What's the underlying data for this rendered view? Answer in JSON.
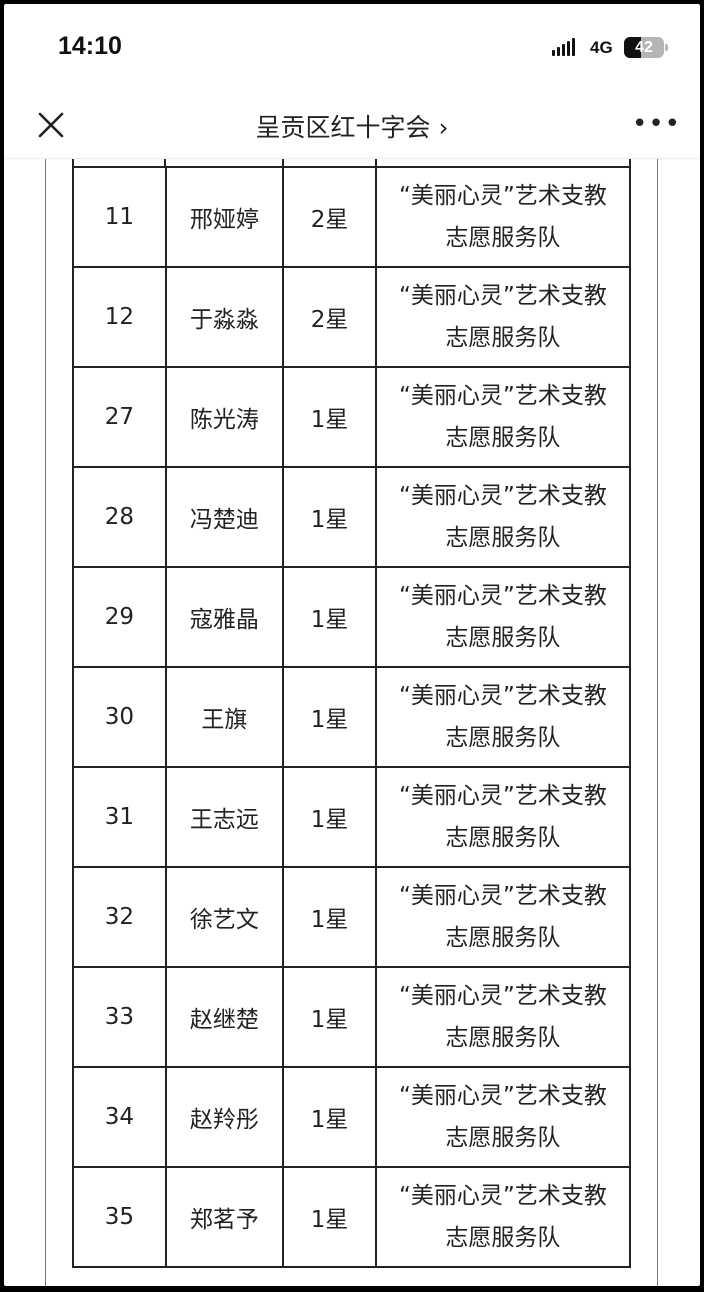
{
  "status_bar": {
    "time": "14:10",
    "network": "4G",
    "battery": "42",
    "battery_level_percent": 42
  },
  "nav": {
    "title": "呈贡区红十字会 ›",
    "close_icon": "close-icon",
    "more_icon": "more-icon",
    "more_label": "•••"
  },
  "colors": {
    "accent_line": "#e0503c",
    "border": "#222222"
  },
  "table": {
    "rows": [
      {
        "no": "11",
        "name": "邢娅婷",
        "level": "2星",
        "team": "“美丽心灵”艺术支教志愿服务队"
      },
      {
        "no": "12",
        "name": "于淼淼",
        "level": "2星",
        "team": "“美丽心灵”艺术支教志愿服务队"
      },
      {
        "no": "27",
        "name": "陈光涛",
        "level": "1星",
        "team": "“美丽心灵”艺术支教志愿服务队"
      },
      {
        "no": "28",
        "name": "冯楚迪",
        "level": "1星",
        "team": "“美丽心灵”艺术支教志愿服务队"
      },
      {
        "no": "29",
        "name": "寇雅晶",
        "level": "1星",
        "team": "“美丽心灵”艺术支教志愿服务队"
      },
      {
        "no": "30",
        "name": "王旗",
        "level": "1星",
        "team": "“美丽心灵”艺术支教志愿服务队"
      },
      {
        "no": "31",
        "name": "王志远",
        "level": "1星",
        "team": "“美丽心灵”艺术支教志愿服务队"
      },
      {
        "no": "32",
        "name": "徐艺文",
        "level": "1星",
        "team": "“美丽心灵”艺术支教志愿服务队"
      },
      {
        "no": "33",
        "name": "赵继楚",
        "level": "1星",
        "team": "“美丽心灵”艺术支教志愿服务队"
      },
      {
        "no": "34",
        "name": "赵羚彤",
        "level": "1星",
        "team": "“美丽心灵”艺术支教志愿服务队"
      },
      {
        "no": "35",
        "name": "郑茗予",
        "level": "1星",
        "team": "“美丽心灵”艺术支教志愿服务队"
      }
    ]
  }
}
